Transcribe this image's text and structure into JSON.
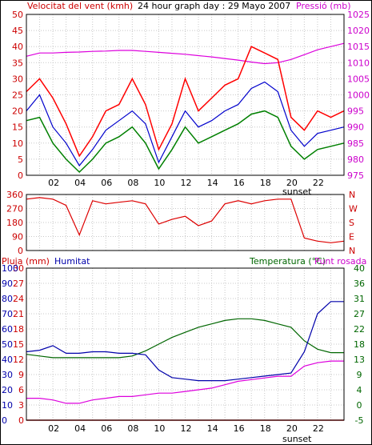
{
  "header": {
    "left_label": "Velocitat del vent (kmh)",
    "center_label": "24 hour graph day : 29 Mayo 2007",
    "right_label": "Pressió (mb)"
  },
  "colors": {
    "wind_gust": "#ff0000",
    "wind_avg": "#0000cc",
    "wind_min": "#008000",
    "pressure": "#dd00dd",
    "direction": "#dd0000",
    "rain": "#cc0000",
    "humidity": "#0000aa",
    "temperature": "#006600",
    "dewpoint": "#dd00dd",
    "grid": "#c8c8c8"
  },
  "x_ticks": [
    "02",
    "04",
    "06",
    "08",
    "10",
    "12",
    "14",
    "16",
    "18",
    "20",
    "22"
  ],
  "sunset_label": "sunset",
  "chart_data": [
    {
      "type": "line",
      "name": "wind-pressure",
      "xlabel": "",
      "ylabel_left": "Velocitat del vent (kmh)",
      "ylabel_right": "Pressió (mb)",
      "ylim_left": [
        0,
        50
      ],
      "ylim_right": [
        975,
        1025
      ],
      "y_ticks_left": [
        0,
        5,
        10,
        15,
        20,
        25,
        30,
        35,
        40,
        45,
        50
      ],
      "y_ticks_right": [
        975,
        980,
        985,
        990,
        995,
        1000,
        1005,
        1010,
        1015,
        1020,
        1025
      ],
      "x_hours": [
        0,
        1,
        2,
        3,
        4,
        5,
        6,
        7,
        8,
        9,
        10,
        11,
        12,
        13,
        14,
        15,
        16,
        17,
        18,
        19,
        20,
        21,
        22,
        23,
        24
      ],
      "series": [
        {
          "key": "gust",
          "values": [
            26,
            30,
            24,
            16,
            6,
            12,
            20,
            22,
            30,
            22,
            8,
            16,
            30,
            20,
            24,
            28,
            30,
            40,
            38,
            36,
            18,
            14,
            20,
            18,
            20
          ]
        },
        {
          "key": "avg",
          "values": [
            20,
            25,
            15,
            10,
            3,
            8,
            14,
            17,
            20,
            16,
            4,
            12,
            20,
            15,
            17,
            20,
            22,
            27,
            29,
            26,
            14,
            9,
            13,
            14,
            15
          ]
        },
        {
          "key": "min",
          "values": [
            17,
            18,
            10,
            5,
            1,
            5,
            10,
            12,
            15,
            10,
            2,
            8,
            15,
            10,
            12,
            14,
            16,
            19,
            20,
            18,
            9,
            5,
            8,
            9,
            10
          ]
        },
        {
          "key": "pressure",
          "axis": "right",
          "values": [
            1012,
            1013,
            1013,
            1013.2,
            1013.3,
            1013.5,
            1013.6,
            1013.8,
            1013.8,
            1013.5,
            1013.2,
            1012.9,
            1012.6,
            1012.2,
            1011.8,
            1011.3,
            1010.8,
            1010.2,
            1009.7,
            1010,
            1011,
            1012.5,
            1014,
            1015,
            1016
          ]
        }
      ]
    },
    {
      "type": "line",
      "name": "wind-direction",
      "ylim": [
        0,
        360
      ],
      "y_ticks": [
        0,
        90,
        180,
        270,
        360
      ],
      "right_labels": [
        "N",
        "W",
        "S",
        "E",
        "N"
      ],
      "x_hours": [
        0,
        1,
        2,
        3,
        4,
        5,
        6,
        7,
        8,
        9,
        10,
        11,
        12,
        13,
        14,
        15,
        16,
        17,
        18,
        19,
        20,
        21,
        22,
        23,
        24
      ],
      "values": [
        330,
        340,
        330,
        290,
        100,
        320,
        300,
        310,
        320,
        300,
        170,
        200,
        220,
        160,
        190,
        300,
        320,
        300,
        320,
        330,
        330,
        80,
        60,
        50,
        60
      ]
    },
    {
      "type": "line",
      "name": "rain-humidity-temperature",
      "ylabel_left": "Pluja (mm)",
      "ylabel_left2": "Humitat",
      "ylabel_right": "Temperatura (°C)",
      "ylabel_right2": "Punt rosada",
      "ylim_rain": [
        0,
        30
      ],
      "ylim_humidity": [
        0,
        100
      ],
      "ylim_temp": [
        -5,
        40
      ],
      "y_ticks_rain": [
        0,
        3,
        6,
        9,
        12,
        15,
        18,
        21,
        24,
        27,
        30
      ],
      "y_ticks_humidity": [
        0,
        10,
        20,
        30,
        40,
        50,
        60,
        70,
        80,
        90,
        100
      ],
      "y_ticks_temp": [
        -5,
        0,
        4,
        9,
        13,
        18,
        22,
        27,
        31,
        36,
        40
      ],
      "x_hours": [
        0,
        1,
        2,
        3,
        4,
        5,
        6,
        7,
        8,
        9,
        10,
        11,
        12,
        13,
        14,
        15,
        16,
        17,
        18,
        19,
        20,
        21,
        22,
        23,
        24
      ],
      "series": [
        {
          "key": "rain",
          "values": [
            0,
            0,
            0,
            0,
            0,
            0,
            0,
            0,
            0,
            0,
            0,
            0,
            0,
            0,
            0,
            0,
            0,
            0,
            0,
            0,
            0,
            0,
            0,
            0,
            0
          ]
        },
        {
          "key": "humidity",
          "values": [
            45,
            46,
            49,
            44,
            44,
            45,
            45,
            44,
            44,
            43,
            33,
            28,
            27,
            26,
            26,
            26,
            27,
            28,
            29,
            30,
            31,
            45,
            70,
            78,
            78
          ]
        },
        {
          "key": "temperature",
          "values": [
            14.5,
            14.0,
            13.5,
            13.5,
            13.5,
            13.5,
            13.5,
            13.5,
            14,
            15.5,
            17.5,
            19.5,
            21,
            22.5,
            23.5,
            24.5,
            25,
            25,
            24.5,
            23.5,
            22.5,
            18.5,
            16,
            15,
            15
          ]
        },
        {
          "key": "dewpoint",
          "values": [
            1.5,
            1.5,
            1.0,
            0,
            0,
            1.0,
            1.5,
            2,
            2,
            2.5,
            3,
            3,
            3.5,
            4,
            4.5,
            5.5,
            6.5,
            7,
            7.5,
            8,
            8,
            11,
            12,
            12.5,
            12.5
          ]
        }
      ]
    }
  ]
}
